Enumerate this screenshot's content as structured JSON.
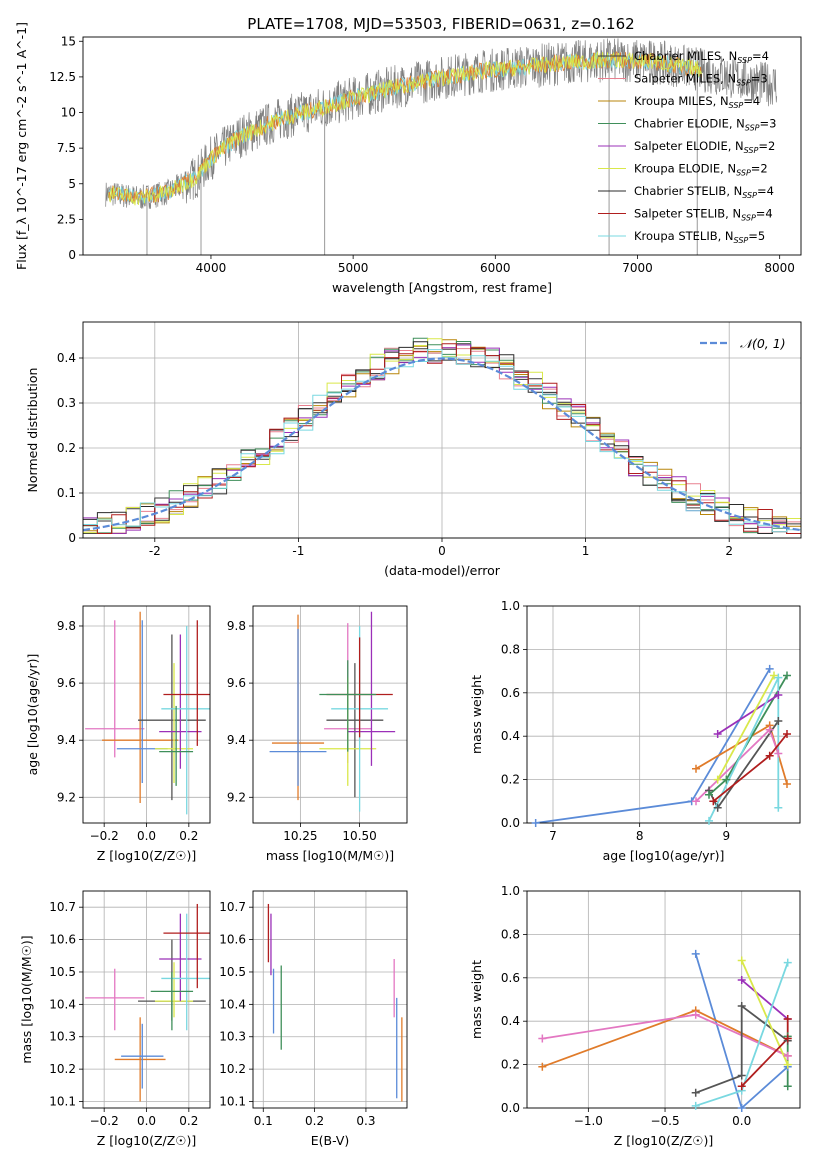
{
  "title": "PLATE=1708, MJD=53503, FIBERID=0631, z=0.162",
  "legend_spectrum": [
    {
      "label": "Chabrier MILES, N_SSP=4",
      "color": "#3a3a3a"
    },
    {
      "label": "Salpeter MILES, N_SSP=3",
      "color": "#e8808f"
    },
    {
      "label": "Kroupa MILES, N_SSP=4",
      "color": "#b8860b"
    },
    {
      "label": "Chabrier ELODIE, N_SSP=3",
      "color": "#3f8f5a"
    },
    {
      "label": "Salpeter ELODIE, N_SSP=2",
      "color": "#9b30b8"
    },
    {
      "label": "Kroupa ELODIE, N_SSP=2",
      "color": "#d9e84a"
    },
    {
      "label": "Chabrier STELIB, N_SSP=4",
      "color": "#2b2b2b"
    },
    {
      "label": "Salpeter STELIB, N_SSP=4",
      "color": "#b01e1e"
    },
    {
      "label": "Kroupa STELIB, N_SSP=5",
      "color": "#79d8e0"
    }
  ],
  "legend_hist": "𝒩(0, 1)",
  "chart_data": [
    {
      "type": "line",
      "id": "spectrum",
      "xlabel": "wavelength [Angstrom, rest frame]",
      "ylabel": "Flux [f_λ 10^-17 erg cm^-2 s^-1 A^-1]",
      "xlim": [
        3100,
        8150
      ],
      "ylim": [
        0,
        15.3
      ],
      "xticks": [
        4000,
        5000,
        6000,
        7000,
        8000
      ],
      "yticks": [
        0.0,
        2.5,
        5.0,
        7.5,
        10.0,
        12.5,
        15.0
      ],
      "continuum_x": [
        3300,
        3500,
        3700,
        3900,
        4000,
        4200,
        4500,
        4800,
        5000,
        5300,
        5600,
        5900,
        6200,
        6500,
        6800,
        7100,
        7400,
        7600,
        7800,
        7900
      ],
      "continuum_y": [
        4.3,
        4.0,
        4.4,
        5.5,
        6.8,
        8.3,
        9.6,
        10.4,
        11.0,
        11.8,
        12.4,
        12.9,
        13.2,
        13.5,
        13.7,
        13.6,
        13.1,
        12.6,
        12.2,
        12.0
      ],
      "grid": false
    },
    {
      "type": "histogram",
      "id": "residuals",
      "xlabel": "(data-model)/error",
      "ylabel": "Normed distribution",
      "xlim": [
        -2.5,
        2.5
      ],
      "ylim": [
        0,
        0.48
      ],
      "xticks": [
        -2,
        -1,
        0,
        1,
        2
      ],
      "yticks": [
        0.0,
        0.1,
        0.2,
        0.3,
        0.4
      ],
      "series": [
        {
          "name": "𝒩(0, 1)",
          "type": "gaussian",
          "mean": 0,
          "sigma": 1,
          "color": "#5b8bd8"
        }
      ],
      "grid": true
    },
    {
      "type": "scatter",
      "id": "z_vs_age",
      "xlabel": "Z [log10(Z/Z☉)]",
      "ylabel": "age  [log10(age/yr)]",
      "xlim": [
        -0.3,
        0.3
      ],
      "ylim": [
        9.11,
        9.87
      ],
      "xticks": [
        -0.2,
        0.0,
        0.2
      ],
      "xticklabels": [
        "−0.2",
        "0.0",
        "0.2"
      ],
      "yticks": [
        9.2,
        9.4,
        9.6,
        9.8
      ],
      "yticklabels": [
        "9.2",
        "9.4",
        "9.6",
        "9.8"
      ],
      "points": [
        {
          "x": -0.15,
          "y": 9.44,
          "xe": 0.14,
          "ye_lo": 0.1,
          "ye_hi": 0.38,
          "color": "#e377c2"
        },
        {
          "x": -0.03,
          "y": 9.4,
          "xe": 0.18,
          "ye_lo": 0.22,
          "ye_hi": 0.45,
          "color": "#e07b2a"
        },
        {
          "x": -0.02,
          "y": 9.37,
          "xe": 0.12,
          "ye_lo": 0.12,
          "ye_hi": 0.45,
          "color": "#5b8bd8"
        },
        {
          "x": 0.12,
          "y": 9.47,
          "xe": 0.16,
          "ye_lo": 0.28,
          "ye_hi": 0.3,
          "color": "#555555"
        },
        {
          "x": 0.13,
          "y": 9.37,
          "xe": 0.09,
          "ye_lo": 0.12,
          "ye_hi": 0.3,
          "color": "#d9e84a"
        },
        {
          "x": 0.16,
          "y": 9.43,
          "xe": 0.1,
          "ye_lo": 0.13,
          "ye_hi": 0.34,
          "color": "#9b30b8"
        },
        {
          "x": 0.19,
          "y": 9.51,
          "xe": 0.12,
          "ye_lo": 0.37,
          "ye_hi": 0.29,
          "color": "#79d8e0"
        },
        {
          "x": 0.24,
          "y": 9.56,
          "xe": 0.16,
          "ye_lo": 0.18,
          "ye_hi": 0.26,
          "color": "#b01e1e"
        },
        {
          "x": 0.14,
          "y": 9.36,
          "xe": 0.08,
          "ye_lo": 0.12,
          "ye_hi": 0.16,
          "color": "#3f8f5a"
        }
      ]
    },
    {
      "type": "scatter",
      "id": "mass_vs_age",
      "xlabel": "mass [log10(M/M☉)]",
      "ylabel": "",
      "xlim": [
        10.05,
        10.7
      ],
      "ylim": [
        9.11,
        9.87
      ],
      "xticks": [
        10.25,
        10.5
      ],
      "xticklabels": [
        "10.25",
        "10.50"
      ],
      "yticks": [
        9.2,
        9.4,
        9.6,
        9.8
      ],
      "yticklabels": [
        "9.2",
        "9.4",
        "9.6",
        "9.8"
      ],
      "points": [
        {
          "x": 10.45,
          "y": 9.44,
          "xe": 0.1,
          "ye_lo": 0.12,
          "ye_hi": 0.37,
          "color": "#e377c2"
        },
        {
          "x": 10.24,
          "y": 9.39,
          "xe": 0.11,
          "ye_lo": 0.2,
          "ye_hi": 0.45,
          "color": "#e07b2a"
        },
        {
          "x": 10.24,
          "y": 9.36,
          "xe": 0.12,
          "ye_lo": 0.12,
          "ye_hi": 0.43,
          "color": "#5b8bd8"
        },
        {
          "x": 10.48,
          "y": 9.47,
          "xe": 0.12,
          "ye_lo": 0.27,
          "ye_hi": 0.2,
          "color": "#555555"
        },
        {
          "x": 10.45,
          "y": 9.37,
          "xe": 0.12,
          "ye_lo": 0.13,
          "ye_hi": 0.25,
          "color": "#d9e84a"
        },
        {
          "x": 10.55,
          "y": 9.43,
          "xe": 0.1,
          "ye_lo": 0.12,
          "ye_hi": 0.42,
          "color": "#9b30b8"
        },
        {
          "x": 10.5,
          "y": 9.51,
          "xe": 0.12,
          "ye_lo": 0.36,
          "ye_hi": 0.29,
          "color": "#79d8e0"
        },
        {
          "x": 10.5,
          "y": 9.56,
          "xe": 0.14,
          "ye_lo": 0.15,
          "ye_hi": 0.2,
          "color": "#b01e1e"
        },
        {
          "x": 10.45,
          "y": 9.56,
          "xe": 0.12,
          "ye_lo": 0.2,
          "ye_hi": 0.12,
          "color": "#3f8f5a"
        }
      ]
    },
    {
      "type": "line",
      "id": "age_vs_weight",
      "xlabel": "age  [log10(age/yr)]",
      "ylabel": "mass weight",
      "xlim": [
        6.7,
        9.85
      ],
      "ylim": [
        0,
        1
      ],
      "xticks": [
        7,
        8,
        9
      ],
      "xticklabels": [
        "7",
        "8",
        "9"
      ],
      "yticks": [
        0,
        0.2,
        0.4,
        0.6,
        0.8,
        1.0
      ],
      "yticklabels": [
        "0.0",
        "0.2",
        "0.4",
        "0.6",
        "0.8",
        "1.0"
      ],
      "series": [
        {
          "color": "#5b8bd8",
          "x": [
            6.8,
            8.6,
            9.5
          ],
          "y": [
            0.0,
            0.1,
            0.71
          ]
        },
        {
          "color": "#e07b2a",
          "x": [
            8.65,
            9.5,
            9.7
          ],
          "y": [
            0.25,
            0.45,
            0.18
          ]
        },
        {
          "color": "#e377c2",
          "x": [
            8.65,
            9.5,
            9.6
          ],
          "y": [
            0.1,
            0.43,
            0.32
          ]
        },
        {
          "color": "#555555",
          "x": [
            8.8,
            8.9,
            9.6
          ],
          "y": [
            0.15,
            0.07,
            0.47
          ]
        },
        {
          "color": "#3f8f5a",
          "x": [
            8.8,
            9.0,
            9.7
          ],
          "y": [
            0.13,
            0.2,
            0.68
          ]
        },
        {
          "color": "#9b30b8",
          "x": [
            8.9,
            9.6
          ],
          "y": [
            0.41,
            0.59
          ]
        },
        {
          "color": "#d9e84a",
          "x": [
            8.9,
            9.55
          ],
          "y": [
            0.2,
            0.68
          ]
        },
        {
          "color": "#79d8e0",
          "x": [
            8.8,
            9.6,
            9.6
          ],
          "y": [
            0.01,
            0.67,
            0.07
          ]
        },
        {
          "color": "#b01e1e",
          "x": [
            8.85,
            9.5,
            9.7
          ],
          "y": [
            0.1,
            0.31,
            0.41
          ]
        }
      ],
      "grid": true
    },
    {
      "type": "scatter",
      "id": "z_vs_mass",
      "xlabel": "Z [log10(Z/Z☉)]",
      "ylabel": "mass [log10(M/M☉)]",
      "xlim": [
        -0.3,
        0.3
      ],
      "ylim": [
        10.08,
        10.75
      ],
      "xticks": [
        -0.2,
        0.0,
        0.2
      ],
      "xticklabels": [
        "−0.2",
        "0.0",
        "0.2"
      ],
      "yticks": [
        10.1,
        10.2,
        10.3,
        10.4,
        10.5,
        10.6,
        10.7
      ],
      "yticklabels": [
        "10.1",
        "10.2",
        "10.3",
        "10.4",
        "10.5",
        "10.6",
        "10.7"
      ],
      "points": [
        {
          "x": -0.15,
          "y": 10.42,
          "xe": 0.14,
          "ye_lo": 0.1,
          "ye_hi": 0.09,
          "color": "#e377c2"
        },
        {
          "x": -0.03,
          "y": 10.23,
          "xe": 0.12,
          "ye_lo": 0.13,
          "ye_hi": 0.13,
          "color": "#e07b2a"
        },
        {
          "x": -0.02,
          "y": 10.24,
          "xe": 0.1,
          "ye_lo": 0.1,
          "ye_hi": 0.1,
          "color": "#5b8bd8"
        },
        {
          "x": 0.12,
          "y": 10.41,
          "xe": 0.16,
          "ye_lo": 0.06,
          "ye_hi": 0.19,
          "color": "#555555"
        },
        {
          "x": 0.13,
          "y": 10.41,
          "xe": 0.09,
          "ye_lo": 0.05,
          "ye_hi": 0.12,
          "color": "#d9e84a"
        },
        {
          "x": 0.16,
          "y": 10.54,
          "xe": 0.1,
          "ye_lo": 0.13,
          "ye_hi": 0.14,
          "color": "#9b30b8"
        },
        {
          "x": 0.19,
          "y": 10.48,
          "xe": 0.12,
          "ye_lo": 0.16,
          "ye_hi": 0.2,
          "color": "#79d8e0"
        },
        {
          "x": 0.24,
          "y": 10.62,
          "xe": 0.16,
          "ye_lo": 0.17,
          "ye_hi": 0.09,
          "color": "#b01e1e"
        },
        {
          "x": 0.12,
          "y": 10.44,
          "xe": 0.1,
          "ye_lo": 0.12,
          "ye_hi": 0.06,
          "color": "#3f8f5a"
        }
      ]
    },
    {
      "type": "scatter",
      "id": "ebv_vs_mass",
      "xlabel": "E(B-V)",
      "ylabel": "",
      "xlim": [
        0.08,
        0.38
      ],
      "ylim": [
        10.08,
        10.75
      ],
      "xticks": [
        0.1,
        0.2,
        0.3
      ],
      "xticklabels": [
        "0.1",
        "0.2",
        "0.3"
      ],
      "yticks": [
        10.1,
        10.2,
        10.3,
        10.4,
        10.5,
        10.6,
        10.7
      ],
      "yticklabels": [
        "10.1",
        "10.2",
        "10.3",
        "10.4",
        "10.5",
        "10.6",
        "10.7"
      ],
      "points": [
        {
          "x": 0.11,
          "y": 10.62,
          "xe": 0.0,
          "ye_lo": 0.09,
          "ye_hi": 0.09,
          "color": "#b01e1e"
        },
        {
          "x": 0.115,
          "y": 10.59,
          "xe": 0.0,
          "ye_lo": 0.1,
          "ye_hi": 0.09,
          "color": "#9b30b8"
        },
        {
          "x": 0.12,
          "y": 10.41,
          "xe": 0.0,
          "ye_lo": 0.1,
          "ye_hi": 0.1,
          "color": "#5b8bd8"
        },
        {
          "x": 0.135,
          "y": 10.39,
          "xe": 0.0,
          "ye_lo": 0.13,
          "ye_hi": 0.13,
          "color": "#3f8f5a"
        },
        {
          "x": 0.355,
          "y": 10.44,
          "xe": 0.0,
          "ye_lo": 0.08,
          "ye_hi": 0.1,
          "color": "#e377c2"
        },
        {
          "x": 0.36,
          "y": 10.26,
          "xe": 0.0,
          "ye_lo": 0.15,
          "ye_hi": 0.16,
          "color": "#5b8bd8"
        },
        {
          "x": 0.37,
          "y": 10.23,
          "xe": 0.0,
          "ye_lo": 0.13,
          "ye_hi": 0.13,
          "color": "#e07b2a"
        }
      ],
      "grid": true
    },
    {
      "type": "line",
      "id": "z_vs_weight",
      "xlabel": "Z [log10(Z/Z☉)]",
      "ylabel": "mass weight",
      "xlim": [
        -1.4,
        0.38
      ],
      "ylim": [
        0,
        1
      ],
      "xticks": [
        -1.0,
        -0.5,
        0.0
      ],
      "xticklabels": [
        "−1.0",
        "−0.5",
        "0.0"
      ],
      "yticks": [
        0,
        0.2,
        0.4,
        0.6,
        0.8,
        1.0
      ],
      "yticklabels": [
        "0.0",
        "0.2",
        "0.4",
        "0.6",
        "0.8",
        "1.0"
      ],
      "series": [
        {
          "color": "#5b8bd8",
          "x": [
            -0.3,
            0.0,
            0.3
          ],
          "y": [
            0.71,
            0.0,
            0.19
          ]
        },
        {
          "color": "#e07b2a",
          "x": [
            -1.3,
            -0.3,
            0.3
          ],
          "y": [
            0.19,
            0.45,
            0.24
          ]
        },
        {
          "color": "#e377c2",
          "x": [
            -1.3,
            -0.3,
            0.3
          ],
          "y": [
            0.32,
            0.43,
            0.24
          ]
        },
        {
          "color": "#555555",
          "x": [
            -0.3,
            0.0,
            0.0,
            0.3
          ],
          "y": [
            0.07,
            0.15,
            0.47,
            0.31
          ]
        },
        {
          "color": "#3f8f5a",
          "x": [
            0.3,
            0.3
          ],
          "y": [
            0.1,
            0.33
          ]
        },
        {
          "color": "#9b30b8",
          "x": [
            0.0,
            0.3
          ],
          "y": [
            0.59,
            0.41
          ]
        },
        {
          "color": "#d9e84a",
          "x": [
            0.0,
            0.3
          ],
          "y": [
            0.68,
            0.2
          ]
        },
        {
          "color": "#79d8e0",
          "x": [
            -0.3,
            0.0,
            0.3
          ],
          "y": [
            0.01,
            0.08,
            0.67
          ]
        },
        {
          "color": "#b01e1e",
          "x": [
            0.0,
            0.3,
            0.3
          ],
          "y": [
            0.1,
            0.32,
            0.41
          ]
        }
      ],
      "grid": true
    }
  ]
}
